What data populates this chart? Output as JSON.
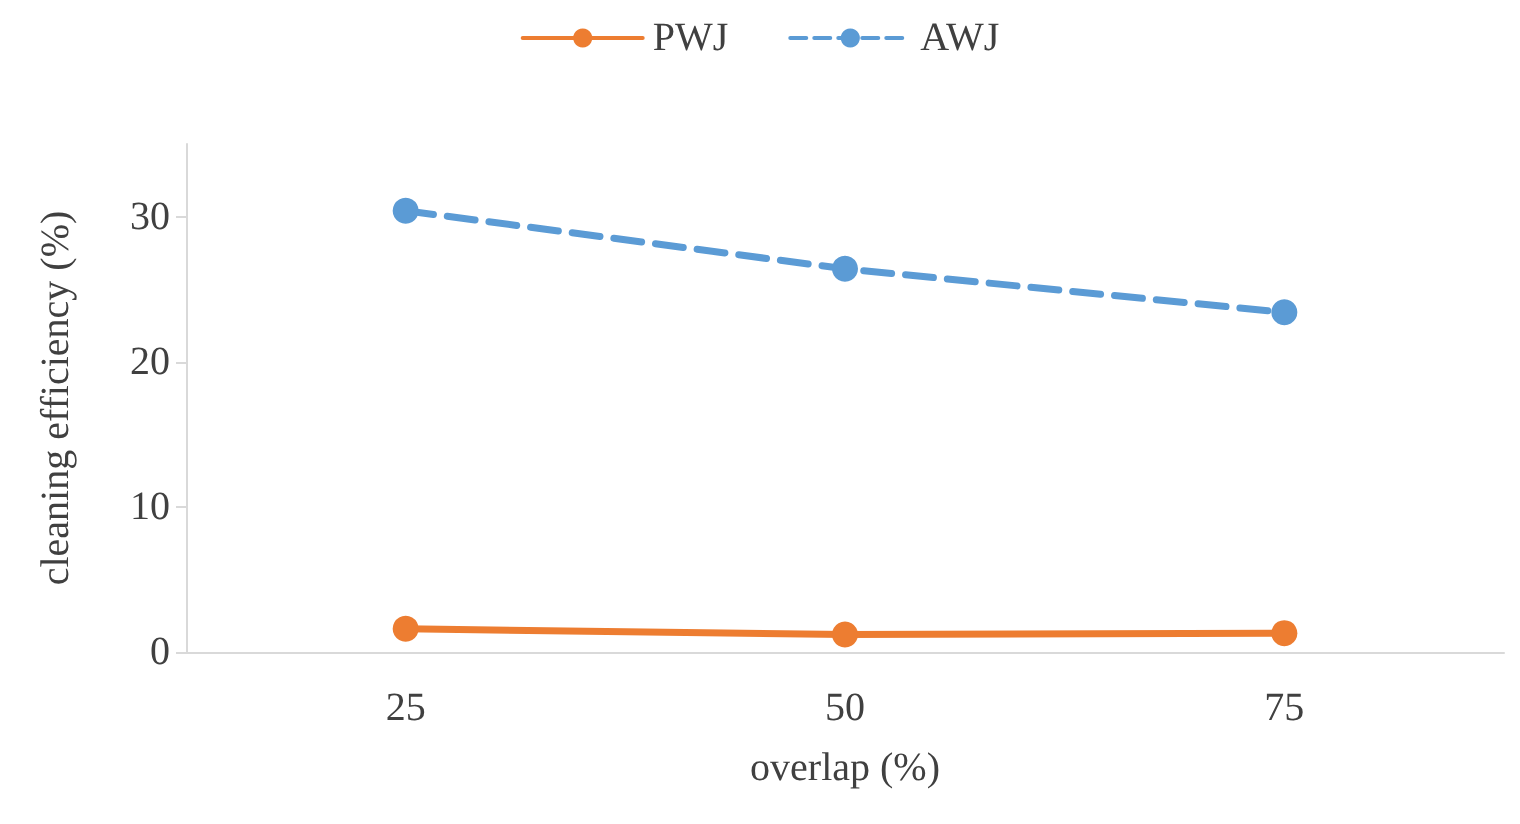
{
  "chart_data": {
    "type": "line",
    "xlabel": "overlap (%)",
    "ylabel": "cleaning efficiency (%)",
    "categories": [
      "25",
      "50",
      "75"
    ],
    "series": [
      {
        "name": "PWJ",
        "color": "#ed7d31",
        "values": [
          1.6,
          1.2,
          1.3
        ],
        "line_style": "solid"
      },
      {
        "name": "AWJ",
        "color": "#5b9bd5",
        "values": [
          30.4,
          26.4,
          23.4
        ],
        "line_style": "dashed"
      }
    ],
    "ylim": [
      0,
      35
    ],
    "yticks": [
      0,
      10,
      20,
      30
    ],
    "grid": false,
    "legend": "top",
    "marker": "circle"
  }
}
